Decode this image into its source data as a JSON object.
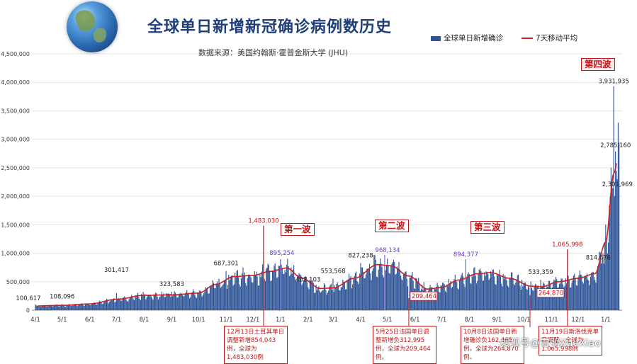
{
  "title": "全球单日新增新冠确诊病例数历史",
  "subtitle": "数据来源：美国约翰斯·霍普金斯大学 (JHU)",
  "legend": {
    "bars": "全球单日新增确诊",
    "line": "7天移动平均"
  },
  "colors": {
    "bar": "#2e5597",
    "line": "#cc1f1f",
    "title": "#1f3f7a",
    "annotation": "#c0161a",
    "callout_value": "#6a3dc4"
  },
  "waves": {
    "w1": "第一波",
    "w2": "第二波",
    "w3": "第三波",
    "w4": "第四波"
  },
  "notes": {
    "n1": "12月13日土耳其单日调整新增854,043例，全球为1,483,030例",
    "n2": "5月25日法国单日调整新增负312,995例，全球为209,464例。",
    "n3": "10月8日法国单日新增确诊负162,465例，全球为264,870例。",
    "n4": "11月19日斯洛伐克单日调整…全球为1,065,998例"
  },
  "watermark": "搜狐号@雪鸮XueXiao",
  "chart_data": {
    "type": "bar",
    "title": "全球单日新增新冠确诊病例数历史",
    "ylim": [
      0,
      4500000
    ],
    "yticks": [
      "0",
      "500,000",
      "1,000,000",
      "1,500,000",
      "2,000,000",
      "2,500,000",
      "3,000,000",
      "3,500,000",
      "4,000,000",
      "4,500,000"
    ],
    "xticks": [
      "4/1",
      "5/1",
      "6/1",
      "7/1",
      "8/1",
      "9/1",
      "10/1",
      "11/1",
      "12/1",
      "1/1",
      "2/1",
      "3/1",
      "4/1",
      "5/1",
      "6/1",
      "7/1",
      "8/1",
      "9/1",
      "10/1",
      "11/1",
      "12/1",
      "1/1"
    ],
    "start_date": "2020-04-01",
    "series": [
      {
        "name": "全球单日新增确诊",
        "kind": "bar"
      },
      {
        "name": "7天移动平均",
        "kind": "line"
      }
    ],
    "key_points": [
      {
        "date": "2020-04-01",
        "value": 100617,
        "label": "100,617"
      },
      {
        "date": "2020-05-01",
        "value": 108096,
        "label": "108,096"
      },
      {
        "date": "2020-07-01",
        "value": 301417,
        "label": "301,417"
      },
      {
        "date": "2020-09-01",
        "value": 323583,
        "label": "323,583"
      },
      {
        "date": "2020-11-01",
        "value": 687301,
        "label": "687,301"
      },
      {
        "date": "2020-12-13",
        "value": 1483030,
        "label": "1,483,030"
      },
      {
        "date": "2021-01-01",
        "value": 895254,
        "label": "895,254"
      },
      {
        "date": "2021-02-01",
        "value": 402103,
        "label": "402,103"
      },
      {
        "date": "2021-03-01",
        "value": 553568,
        "label": "553,568"
      },
      {
        "date": "2021-04-01",
        "value": 827238,
        "label": "827,238"
      },
      {
        "date": "2021-04-28",
        "value": 968134,
        "label": "968,134"
      },
      {
        "date": "2021-05-25",
        "value": 209464,
        "label": "209,464"
      },
      {
        "date": "2021-07-28",
        "value": 894377,
        "label": "894,377"
      },
      {
        "date": "2021-10-08",
        "value": 264870,
        "label": "264,870"
      },
      {
        "date": "2021-10-20",
        "value": 533359,
        "label": "533,359"
      },
      {
        "date": "2021-11-19",
        "value": 1065998,
        "label": "1,065,998"
      },
      {
        "date": "2021-12-30",
        "value": 814676,
        "label": "814,676"
      },
      {
        "date": "2022-01-10",
        "value": 3931935,
        "label": "3,931,935"
      },
      {
        "date": "2022-01-12",
        "value": 2785160,
        "label": "2,785,160"
      },
      {
        "date": "2022-01-14",
        "value": 2301969,
        "label": "2,301,969"
      }
    ],
    "moving_average_anchors": [
      {
        "date": "2020-04-01",
        "value": 75000
      },
      {
        "date": "2020-05-01",
        "value": 85000
      },
      {
        "date": "2020-06-01",
        "value": 110000
      },
      {
        "date": "2020-07-01",
        "value": 190000
      },
      {
        "date": "2020-08-01",
        "value": 260000
      },
      {
        "date": "2020-09-01",
        "value": 270000
      },
      {
        "date": "2020-10-01",
        "value": 300000
      },
      {
        "date": "2020-10-20",
        "value": 450000
      },
      {
        "date": "2020-11-10",
        "value": 590000
      },
      {
        "date": "2020-12-01",
        "value": 610000
      },
      {
        "date": "2020-12-20",
        "value": 680000
      },
      {
        "date": "2021-01-08",
        "value": 740000
      },
      {
        "date": "2021-01-25",
        "value": 560000
      },
      {
        "date": "2021-02-15",
        "value": 380000
      },
      {
        "date": "2021-03-01",
        "value": 390000
      },
      {
        "date": "2021-03-25",
        "value": 560000
      },
      {
        "date": "2021-04-20",
        "value": 800000
      },
      {
        "date": "2021-05-05",
        "value": 780000
      },
      {
        "date": "2021-05-25",
        "value": 600000
      },
      {
        "date": "2021-06-15",
        "value": 370000
      },
      {
        "date": "2021-07-01",
        "value": 400000
      },
      {
        "date": "2021-07-20",
        "value": 530000
      },
      {
        "date": "2021-08-10",
        "value": 640000
      },
      {
        "date": "2021-08-25",
        "value": 660000
      },
      {
        "date": "2021-09-15",
        "value": 560000
      },
      {
        "date": "2021-10-10",
        "value": 420000
      },
      {
        "date": "2021-10-20",
        "value": 410000
      },
      {
        "date": "2021-11-10",
        "value": 500000
      },
      {
        "date": "2021-12-01",
        "value": 560000
      },
      {
        "date": "2021-12-20",
        "value": 640000
      },
      {
        "date": "2022-01-01",
        "value": 1200000
      },
      {
        "date": "2022-01-10",
        "value": 2400000
      },
      {
        "date": "2022-01-17",
        "value": 2850000
      }
    ],
    "grid": true,
    "legend_position": "top-right"
  }
}
